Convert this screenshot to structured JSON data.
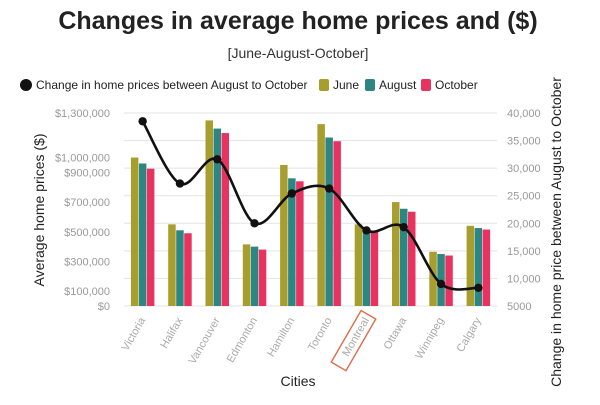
{
  "chart_data": {
    "type": "bar",
    "title": "Changes in average home prices and ($)",
    "subtitle": "[June-August-October]",
    "xlabel": "Cities",
    "ylabel": "Average home prices ($)",
    "y2label": "Change in home price between August to October",
    "categories": [
      "Victoria",
      "Halifax",
      "Vancouver",
      "Edmonton",
      "Hamilton",
      "Toronto",
      "Montreal",
      "Ottawa",
      "Winnipeg",
      "Calgary"
    ],
    "highlighted_category": "Montreal",
    "series": [
      {
        "name": "June",
        "color": "#a89e2e",
        "values": [
          1000000,
          550000,
          1250000,
          415000,
          950000,
          1225000,
          550000,
          700000,
          365000,
          540000
        ]
      },
      {
        "name": "August",
        "color": "#2e8682",
        "values": [
          960000,
          510000,
          1195000,
          400000,
          860000,
          1135000,
          520000,
          655000,
          350000,
          525000
        ]
      },
      {
        "name": "October",
        "color": "#e83361",
        "values": [
          925000,
          490000,
          1165000,
          380000,
          840000,
          1110000,
          505000,
          635000,
          340000,
          515000
        ]
      }
    ],
    "line_series": {
      "name": "Change in home prices between August to October",
      "color": "#111111",
      "values": [
        38500,
        27200,
        31600,
        20000,
        25400,
        26300,
        18700,
        19300,
        9000,
        8300
      ]
    },
    "ylim": [
      0,
      1300000
    ],
    "y_ticks": [
      {
        "value": 0,
        "label": "$0"
      },
      {
        "value": 100000,
        "label": "$100,000"
      },
      {
        "value": 300000,
        "label": "$300,000"
      },
      {
        "value": 500000,
        "label": "$500,000"
      },
      {
        "value": 700000,
        "label": "$700,000"
      },
      {
        "value": 900000,
        "label": "$900,000"
      },
      {
        "value": 1000000,
        "label": "$1,000,000"
      },
      {
        "value": 1300000,
        "label": "$1,300,000"
      }
    ],
    "y2lim": [
      5000,
      40000
    ],
    "y2_ticks": [
      5000,
      10000,
      15000,
      20000,
      25000,
      30000,
      35000,
      40000
    ],
    "y2_tick_labels": [
      "5000",
      "10,000",
      "15,000",
      "20,000",
      "25,000",
      "30,000",
      "35,000",
      "40,000"
    ],
    "legend_position": "top"
  }
}
